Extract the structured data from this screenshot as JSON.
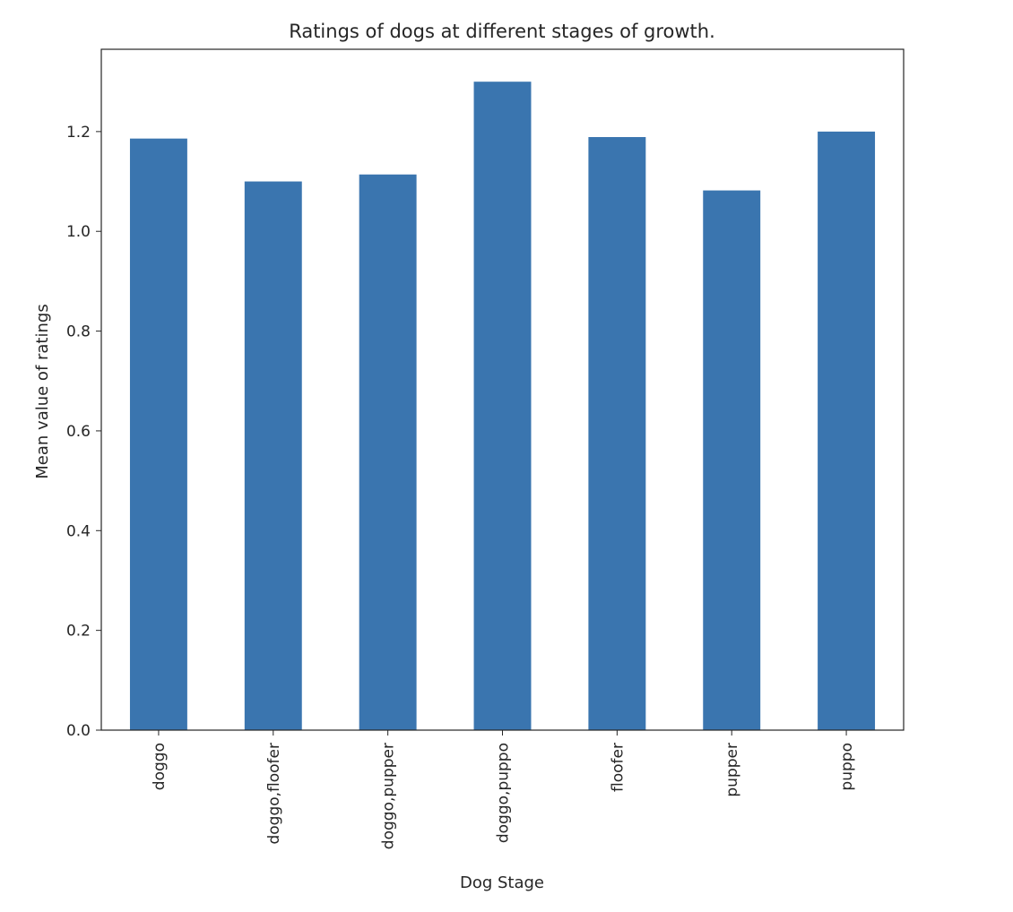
{
  "chart_data": {
    "type": "bar",
    "title": "Ratings of dogs at different stages of growth.",
    "xlabel": "Dog Stage",
    "ylabel": "Mean value of ratings",
    "categories": [
      "doggo",
      "doggo,floofer",
      "doggo,pupper",
      "doggo,puppo",
      "floofer",
      "pupper",
      "puppo"
    ],
    "values": [
      1.186,
      1.1,
      1.114,
      1.3,
      1.189,
      1.082,
      1.2
    ],
    "ylim": [
      0,
      1.365
    ],
    "yticks": [
      "0.0",
      "0.2",
      "0.4",
      "0.6",
      "0.8",
      "1.0",
      "1.2"
    ],
    "bar_color": "#3a75af",
    "grid": false,
    "legend": "none"
  }
}
